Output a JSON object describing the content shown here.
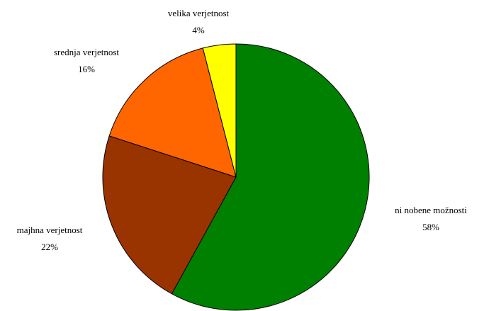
{
  "chart_data": {
    "type": "pie",
    "categories": [
      "ni nobene možnosti",
      "majhna verjetnost",
      "srednja verjetnost",
      "velika verjetnost"
    ],
    "values": [
      58,
      22,
      16,
      4
    ],
    "value_labels": [
      "58%",
      "22%",
      "16%",
      "4%"
    ],
    "colors": [
      "#008000",
      "#993300",
      "#ff6600",
      "#ffff00"
    ]
  }
}
